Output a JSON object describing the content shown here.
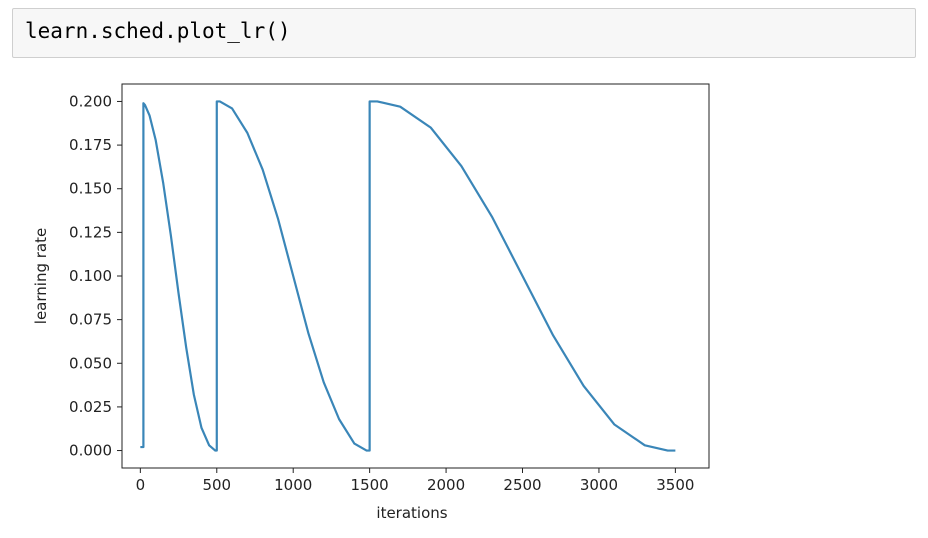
{
  "cell": {
    "code": "learn.sched.plot_lr()"
  },
  "chart_data": {
    "type": "line",
    "title": "",
    "xlabel": "iterations",
    "ylabel": "learning rate",
    "xlim": [
      -120,
      3720
    ],
    "ylim": [
      -0.01,
      0.21
    ],
    "xticks": [
      0,
      500,
      1000,
      1500,
      2000,
      2500,
      3000,
      3500
    ],
    "xtick_labels": [
      "0",
      "500",
      "1000",
      "1500",
      "2000",
      "2500",
      "3000",
      "3500"
    ],
    "yticks": [
      0.0,
      0.025,
      0.05,
      0.075,
      0.1,
      0.125,
      0.15,
      0.175,
      0.2
    ],
    "ytick_labels": [
      "0.000",
      "0.025",
      "0.050",
      "0.075",
      "0.100",
      "0.125",
      "0.150",
      "0.175",
      "0.200"
    ],
    "grid": false,
    "line_color": "#3a86b8",
    "series": [
      {
        "x": [
          0,
          20,
          20,
          30,
          60,
          100,
          150,
          200,
          250,
          300,
          350,
          400,
          450,
          490,
          500,
          500,
          520,
          600,
          700,
          800,
          900,
          1000,
          1100,
          1200,
          1300,
          1400,
          1480,
          1500,
          1500,
          1550,
          1700,
          1900,
          2100,
          2300,
          2500,
          2700,
          2900,
          3100,
          3300,
          3450,
          3500
        ],
        "y": [
          0.002,
          0.002,
          0.199,
          0.198,
          0.192,
          0.178,
          0.153,
          0.123,
          0.09,
          0.059,
          0.032,
          0.013,
          0.003,
          0.0,
          0.0,
          0.2,
          0.2,
          0.196,
          0.182,
          0.161,
          0.133,
          0.1,
          0.067,
          0.039,
          0.018,
          0.004,
          0.0,
          0.0,
          0.2,
          0.2,
          0.197,
          0.185,
          0.163,
          0.134,
          0.1,
          0.066,
          0.037,
          0.015,
          0.003,
          0.0,
          0.0
        ]
      }
    ]
  }
}
